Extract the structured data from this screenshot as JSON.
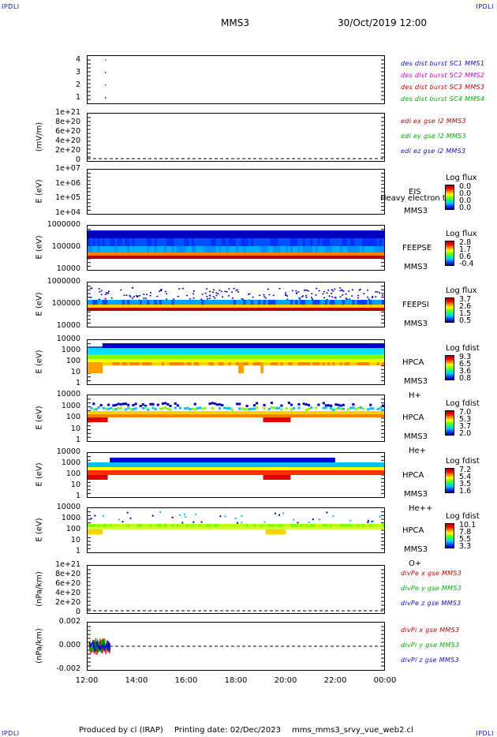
{
  "header": {
    "corner_label": "IPDLI",
    "spacecraft": "MMS3",
    "datetime": "30/Oct/2019 12:00"
  },
  "footer": {
    "produced_by": "Produced by cl (IRAP)",
    "printing_date": "Printing date: 02/Dec/2023",
    "filename": "mms_mms3_srvy_vue_web2.cl"
  },
  "x_axis": {
    "ticks": [
      "12:00",
      "14:00",
      "16:00",
      "18:00",
      "20:00",
      "22:00",
      "00:00"
    ]
  },
  "panels": {
    "p1": {
      "ticks": [
        "4",
        "3",
        "2",
        "1"
      ],
      "legend": [
        "des dist burst SC1 MMS1",
        "des dist burst SC2 MMS2",
        "des dist burst SC3 MMS3",
        "des dist burst SC4 MMS4"
      ],
      "legend_colors": [
        "#1010c0",
        "#d000d0",
        "#c00000",
        "#00b000"
      ]
    },
    "p2": {
      "ylabel": "(mV/m)",
      "ticks": [
        "1e+21",
        "8e+20",
        "6e+20",
        "4e+20",
        "2e+20",
        "0"
      ],
      "legend": [
        "edi ex gse l2 MMS3",
        "edi ey gse l2 MMS3",
        "edi ez gse l2 MMS3"
      ],
      "legend_colors": [
        "#c00000",
        "#00b000",
        "#1010c0"
      ]
    },
    "p3": {
      "ylabel": "E (eV)",
      "ticks": [
        "1e+07",
        "1e+06",
        "1e+05",
        "1e+04"
      ],
      "instrument": "EIS",
      "overlay": "Heavy electron to",
      "sc": "MMS3",
      "cbar_title": "Log flux",
      "cbar_values": [
        "0.0",
        "0.0",
        "0.0",
        "0.0"
      ]
    },
    "p4": {
      "ylabel": "E (eV)",
      "ticks": [
        "1000000",
        "100000",
        "10000"
      ],
      "instrument": "FEEPSE",
      "sc": "MMS3",
      "cbar_title": "Log flux",
      "cbar_values": [
        "2.8",
        "1.7",
        "0.6",
        "-0.4"
      ]
    },
    "p5": {
      "ylabel": "E (eV)",
      "ticks": [
        "1000000",
        "100000",
        "10000"
      ],
      "instrument": "FEEPSI",
      "sc": "MMS3",
      "cbar_title": "Log flux",
      "cbar_values": [
        "3.7",
        "2.6",
        "1.5",
        "0.5"
      ]
    },
    "p6": {
      "ylabel": "E (eV)",
      "ticks": [
        "10000",
        "1000",
        "100",
        "10",
        "1"
      ],
      "instrument": "HPCA",
      "sc": "MMS3",
      "species": "H+",
      "cbar_title": "Log fdist",
      "cbar_values": [
        "9.3",
        "6.5",
        "3.6",
        "0.8"
      ]
    },
    "p7": {
      "ylabel": "E (eV)",
      "ticks": [
        "10000",
        "1000",
        "100",
        "10",
        "1"
      ],
      "instrument": "HPCA",
      "sc": "MMS3",
      "species": "He+",
      "cbar_title": "Log fdist",
      "cbar_values": [
        "7.0",
        "5.3",
        "3.7",
        "2.0"
      ]
    },
    "p8": {
      "ylabel": "E (eV)",
      "ticks": [
        "10000",
        "1000",
        "100",
        "10",
        "1"
      ],
      "instrument": "HPCA",
      "sc": "MMS3",
      "species": "He++",
      "cbar_title": "Log fdist",
      "cbar_values": [
        "7.2",
        "5.4",
        "3.5",
        "1.6"
      ]
    },
    "p9": {
      "ylabel": "E (eV)",
      "ticks": [
        "10000",
        "1000",
        "100",
        "10",
        "1"
      ],
      "instrument": "HPCA",
      "sc": "MMS3",
      "species": "O+",
      "cbar_title": "Log fdist",
      "cbar_values": [
        "10.1",
        "7.8",
        "5.5",
        "3.3"
      ]
    },
    "p10": {
      "ylabel": "(nPa/km)",
      "ticks": [
        "1e+21",
        "8e+20",
        "6e+20",
        "4e+20",
        "2e+20",
        "0"
      ],
      "legend": [
        "divPe x gse MMS3",
        "divPe y gse MMS3",
        "divPe z gse MMS3"
      ],
      "legend_colors": [
        "#c00000",
        "#00b000",
        "#1010c0"
      ]
    },
    "p11": {
      "ylabel": "(nPa/km)",
      "ticks": [
        "0.002",
        "0.000",
        "-0.002"
      ],
      "legend": [
        "divPi x gse MMS3",
        "divPi y gse MMS3",
        "divPi z gse MMS3"
      ],
      "legend_colors": [
        "#c00000",
        "#00b000",
        "#1010c0"
      ]
    }
  },
  "chart_data": {
    "type": "heatmap",
    "title": "MMS3 30/Oct/2019 12:00",
    "xlabel": "",
    "x_range": [
      "12:00",
      "00:00"
    ],
    "spectrograms": [
      {
        "instrument": "FEEPSE",
        "ylabel": "E (eV)",
        "ylim": [
          10000,
          1000000
        ],
        "log_y": true,
        "colorbar": "Log flux",
        "c_range": [
          -0.4,
          2.8
        ]
      },
      {
        "instrument": "FEEPSI",
        "ylabel": "E (eV)",
        "ylim": [
          10000,
          1000000
        ],
        "log_y": true,
        "colorbar": "Log flux",
        "c_range": [
          0.5,
          3.7
        ]
      },
      {
        "instrument": "HPCA H+",
        "ylabel": "E (eV)",
        "ylim": [
          1,
          10000
        ],
        "log_y": true,
        "colorbar": "Log fdist",
        "c_range": [
          0.8,
          9.3
        ]
      },
      {
        "instrument": "HPCA He+",
        "ylabel": "E (eV)",
        "ylim": [
          1,
          10000
        ],
        "log_y": true,
        "colorbar": "Log fdist",
        "c_range": [
          2.0,
          7.0
        ]
      },
      {
        "instrument": "HPCA He++",
        "ylabel": "E (eV)",
        "ylim": [
          1,
          10000
        ],
        "log_y": true,
        "colorbar": "Log fdist",
        "c_range": [
          1.6,
          7.2
        ]
      },
      {
        "instrument": "HPCA O+",
        "ylabel": "E (eV)",
        "ylim": [
          1,
          10000
        ],
        "log_y": true,
        "colorbar": "Log fdist",
        "c_range": [
          3.3,
          10.1
        ]
      }
    ]
  }
}
